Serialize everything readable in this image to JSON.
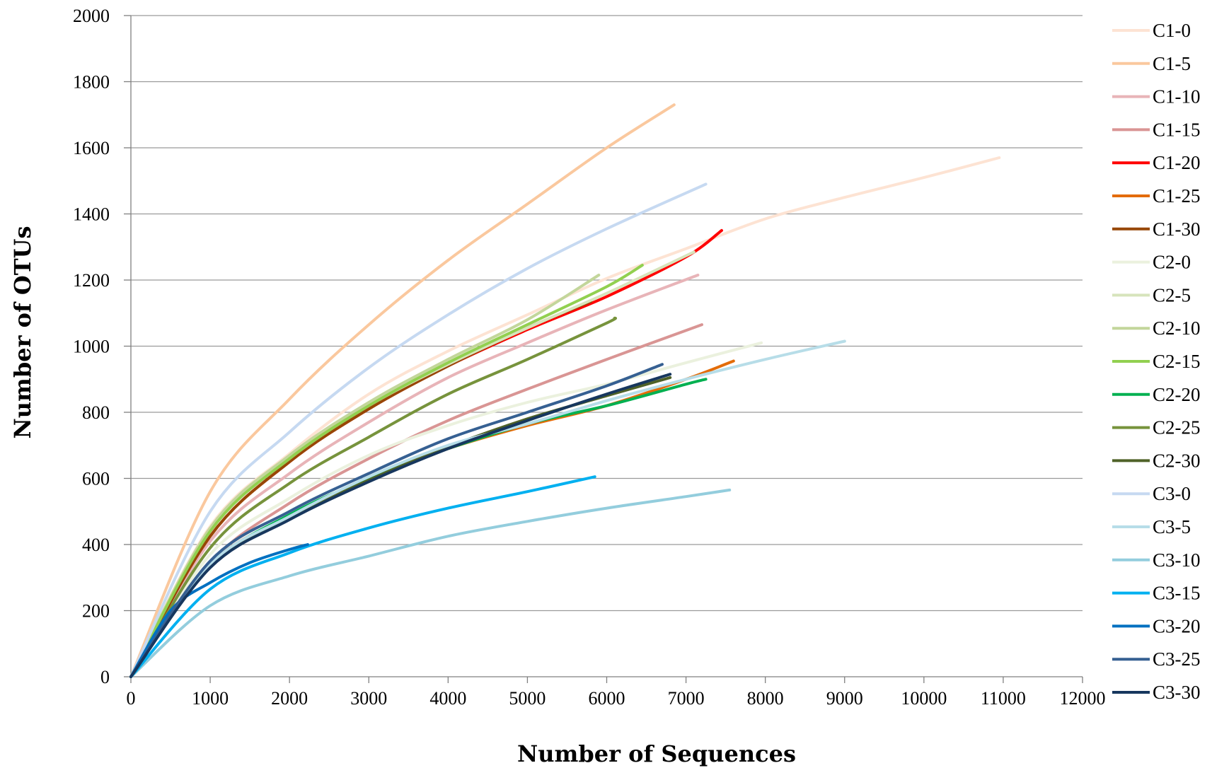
{
  "chart_data": {
    "type": "line",
    "title": "",
    "xlabel": "Number of Sequences",
    "ylabel": "Number of OTUs",
    "xlim": [
      0,
      12000
    ],
    "ylim": [
      0,
      2000
    ],
    "xticks": [
      "0",
      "1000",
      "2000",
      "3000",
      "4000",
      "5000",
      "6000",
      "7000",
      "8000",
      "9000",
      "10000",
      "11000",
      "12000"
    ],
    "yticks": [
      "0",
      "200",
      "400",
      "600",
      "800",
      "1000",
      "1200",
      "1400",
      "1600",
      "1800",
      "2000"
    ],
    "grid": "horizontal",
    "legend_position": "right",
    "series": [
      {
        "name": "C1-0",
        "color": "#FDE3D3",
        "x": [
          0,
          1000,
          2000,
          3000,
          4000,
          5000,
          6000,
          7000,
          8000,
          9000,
          10000,
          10950
        ],
        "y": [
          0,
          455,
          675,
          855,
          985,
          1095,
          1205,
          1295,
          1385,
          1450,
          1510,
          1570
        ]
      },
      {
        "name": "C1-5",
        "color": "#FAC89E",
        "x": [
          0,
          1000,
          2000,
          3000,
          4000,
          5000,
          6000,
          6850
        ],
        "y": [
          0,
          560,
          840,
          1065,
          1260,
          1430,
          1600,
          1730
        ]
      },
      {
        "name": "C1-10",
        "color": "#E8B4B8",
        "x": [
          0,
          1000,
          2000,
          3000,
          4000,
          5000,
          6000,
          7150
        ],
        "y": [
          0,
          410,
          615,
          770,
          905,
          1010,
          1110,
          1215
        ]
      },
      {
        "name": "C1-15",
        "color": "#D99594",
        "x": [
          0,
          1000,
          2000,
          3000,
          4000,
          5000,
          6000,
          7200
        ],
        "y": [
          0,
          345,
          525,
          660,
          775,
          870,
          960,
          1065
        ]
      },
      {
        "name": "C1-20",
        "color": "#FF0000",
        "x": [
          0,
          1000,
          2000,
          3000,
          4000,
          5000,
          6000,
          7000,
          7450
        ],
        "y": [
          0,
          425,
          650,
          810,
          940,
          1050,
          1150,
          1270,
          1350
        ]
      },
      {
        "name": "C1-25",
        "color": "#E36C09",
        "x": [
          0,
          1000,
          2000,
          3000,
          4000,
          5000,
          6000,
          7000,
          7600
        ],
        "y": [
          0,
          340,
          485,
          600,
          690,
          760,
          820,
          900,
          955
        ]
      },
      {
        "name": "C1-30",
        "color": "#974706",
        "x": [
          0,
          1000,
          2000,
          3000,
          4000,
          5000,
          5800
        ],
        "y": [
          0,
          425,
          650,
          810,
          940,
          1055,
          1135
        ]
      },
      {
        "name": "C2-0",
        "color": "#EBF1DE",
        "x": [
          0,
          1000,
          2000,
          3000,
          4000,
          5000,
          6000,
          7000,
          7950
        ],
        "y": [
          0,
          370,
          540,
          670,
          760,
          830,
          885,
          950,
          1010
        ]
      },
      {
        "name": "C2-5",
        "color": "#D7E4BC",
        "x": [
          0,
          1000,
          2000,
          3000,
          4000,
          5000,
          6000,
          7100
        ],
        "y": [
          0,
          445,
          660,
          820,
          945,
          1055,
          1160,
          1285
        ]
      },
      {
        "name": "C2-10",
        "color": "#C3D69B",
        "x": [
          0,
          1000,
          2000,
          3000,
          4000,
          5000,
          5900
        ],
        "y": [
          0,
          450,
          670,
          830,
          960,
          1080,
          1215
        ]
      },
      {
        "name": "C2-15",
        "color": "#92D050",
        "x": [
          0,
          1000,
          2000,
          3000,
          4000,
          5000,
          6000,
          6450
        ],
        "y": [
          0,
          440,
          660,
          820,
          950,
          1065,
          1180,
          1245
        ]
      },
      {
        "name": "C2-20",
        "color": "#00B050",
        "x": [
          0,
          1000,
          2000,
          3000,
          4000,
          5000,
          6000,
          7000,
          7250
        ],
        "y": [
          0,
          335,
          490,
          600,
          690,
          765,
          820,
          885,
          900
        ]
      },
      {
        "name": "C2-25",
        "color": "#77933C",
        "x": [
          0,
          1000,
          2000,
          3000,
          4000,
          5000,
          6000,
          6100
        ],
        "y": [
          0,
          390,
          585,
          725,
          855,
          960,
          1070,
          1085
        ]
      },
      {
        "name": "C2-30",
        "color": "#4F6228",
        "x": [
          0,
          1000,
          2000,
          3000,
          4000,
          5000,
          6000,
          6800
        ],
        "y": [
          0,
          340,
          480,
          595,
          695,
          780,
          850,
          905
        ]
      },
      {
        "name": "C3-0",
        "color": "#C6D9F1",
        "x": [
          0,
          1000,
          2000,
          3000,
          4000,
          5000,
          6000,
          7250
        ],
        "y": [
          0,
          500,
          740,
          935,
          1095,
          1235,
          1355,
          1490
        ]
      },
      {
        "name": "C3-5",
        "color": "#B7DDE8",
        "x": [
          0,
          1000,
          2000,
          3000,
          4000,
          5000,
          6000,
          7000,
          8000,
          9000
        ],
        "y": [
          0,
          340,
          485,
          605,
          700,
          765,
          835,
          900,
          960,
          1015
        ]
      },
      {
        "name": "C3-10",
        "color": "#93CDDD",
        "x": [
          0,
          1000,
          2000,
          3000,
          4000,
          5000,
          6000,
          7000,
          7550
        ],
        "y": [
          0,
          215,
          305,
          365,
          425,
          470,
          510,
          545,
          565
        ]
      },
      {
        "name": "C3-15",
        "color": "#00B0F0",
        "x": [
          0,
          1000,
          2000,
          3000,
          4000,
          5000,
          5850
        ],
        "y": [
          0,
          265,
          375,
          450,
          510,
          560,
          605
        ]
      },
      {
        "name": "C3-20",
        "color": "#0070C0",
        "x": [
          0,
          500,
          1000,
          1500,
          2000,
          2230
        ],
        "y": [
          0,
          200,
          285,
          345,
          385,
          400
        ]
      },
      {
        "name": "C3-25",
        "color": "#366092",
        "x": [
          0,
          1000,
          2000,
          3000,
          4000,
          5000,
          6000,
          6700
        ],
        "y": [
          0,
          350,
          500,
          615,
          720,
          800,
          880,
          945
        ]
      },
      {
        "name": "C3-30",
        "color": "#17375E",
        "x": [
          0,
          1000,
          2000,
          3000,
          4000,
          5000,
          6000,
          6800
        ],
        "y": [
          0,
          330,
          475,
          590,
          690,
          775,
          855,
          915
        ]
      }
    ]
  }
}
